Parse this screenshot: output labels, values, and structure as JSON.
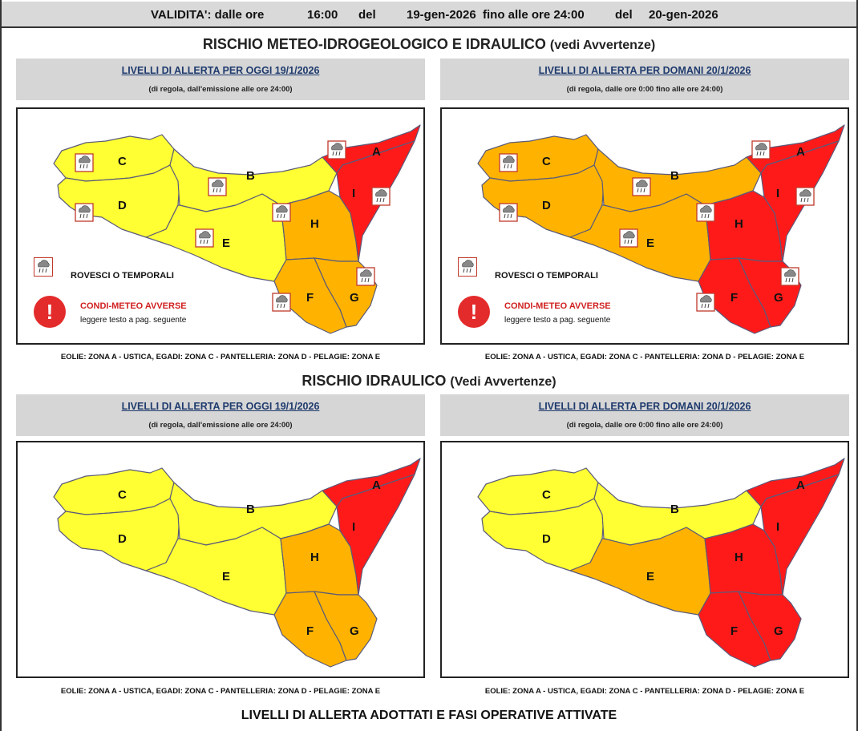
{
  "validity": {
    "label": "VALIDITA': dalle ore",
    "from_time": "16:00",
    "del1": "del",
    "from_date": "19-gen-2026",
    "until_label": "fino alle ore 24:00",
    "del2": "del",
    "to_date": "20-gen-2026"
  },
  "section1": {
    "title": "RISCHIO METEO-IDROGEOLOGICO E IDRAULICO",
    "subtitle": "(vedi Avvertenze)"
  },
  "section2": {
    "title": "RISCHIO IDRAULICO",
    "subtitle": "(Vedi Avvertenze)"
  },
  "panels": {
    "today_title": "LIVELLI DI ALLERTA PER OGGI 19/1/2026",
    "today_sub": "(di regola, dall'emissione alle ore 24:00)",
    "tomorrow_title": "LIVELLI DI ALLERTA PER DOMANI 20/1/2026",
    "tomorrow_sub": "(di regola, dalle ore 0:00 fino alle ore 24:00)"
  },
  "footer_note": "EOLIE: ZONA A - USTICA, EGADI: ZONA C - PANTELLERIA: ZONA D - PELAGIE: ZONA E",
  "legend": {
    "storms": "ROVESCI O TEMPORALI",
    "adverse": "CONDI-METEO AVVERSE",
    "adverse_sub": "leggere testo a pag. seguente"
  },
  "bottom_title": "LIVELLI DI ALLERTA ADOTTATI E FASI OPERATIVE ATTIVATE",
  "colors": {
    "yellow": "#ffff33",
    "orange": "#ffb300",
    "red": "#ff1a1a",
    "border": "#5a5a7a"
  },
  "maps": [
    {
      "id": "meteo-today",
      "zones": {
        "A": "red",
        "B": "yellow",
        "C": "yellow",
        "D": "yellow",
        "E": "yellow",
        "F": "orange",
        "G": "orange",
        "H": "orange",
        "I": "red"
      },
      "storm_icons": true
    },
    {
      "id": "meteo-tomorrow",
      "zones": {
        "A": "red",
        "B": "orange",
        "C": "orange",
        "D": "orange",
        "E": "orange",
        "F": "red",
        "G": "red",
        "H": "red",
        "I": "red"
      },
      "storm_icons": true
    },
    {
      "id": "hydraulic-today",
      "zones": {
        "A": "red",
        "B": "yellow",
        "C": "yellow",
        "D": "yellow",
        "E": "yellow",
        "F": "orange",
        "G": "orange",
        "H": "orange",
        "I": "red"
      },
      "storm_icons": false
    },
    {
      "id": "hydraulic-tomorrow",
      "zones": {
        "A": "red",
        "B": "yellow",
        "C": "yellow",
        "D": "yellow",
        "E": "orange",
        "F": "red",
        "G": "red",
        "H": "red",
        "I": "red"
      },
      "storm_icons": false
    }
  ],
  "zone_labels": [
    "A",
    "B",
    "C",
    "D",
    "E",
    "F",
    "G",
    "H",
    "I"
  ]
}
